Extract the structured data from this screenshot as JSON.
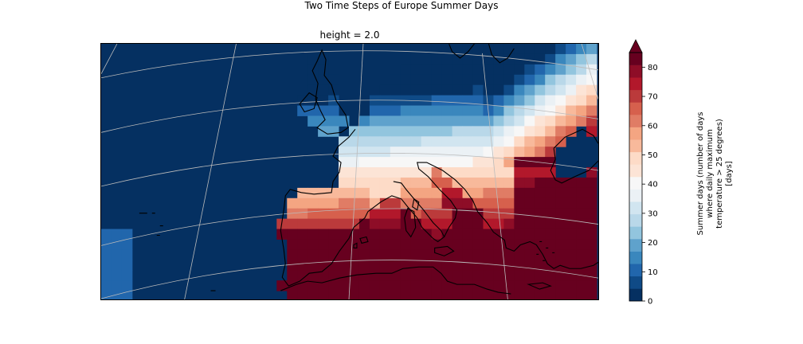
{
  "figure": {
    "suptitle": "Two Time Steps of Europe Summer Days",
    "axes_title": "height = 2.0"
  },
  "colorbar": {
    "label_lines": [
      "Summer days (number of days",
      "where daily maximum",
      "temperature > 25 degrees)",
      "[days]"
    ],
    "ticks": [
      0,
      10,
      20,
      30,
      40,
      50,
      60,
      70,
      80
    ],
    "vmin": 0,
    "vmax": 85,
    "extend": "max",
    "colors": [
      "#053061",
      "#0f4a86",
      "#2166ac",
      "#3a87bd",
      "#5fa2cc",
      "#92c5de",
      "#b9d8e9",
      "#d1e5f0",
      "#ebf1f5",
      "#f7f7f7",
      "#fce4d6",
      "#fddbc7",
      "#f8b99b",
      "#f4a582",
      "#e07c65",
      "#d6604d",
      "#bb3a3b",
      "#b2182b",
      "#8e0d27",
      "#67001f"
    ]
  },
  "map": {
    "projection": "lambert-conformal",
    "gridlines": true,
    "coastlines": true,
    "region": "Europe",
    "colormap": "RdBu_r"
  }
}
